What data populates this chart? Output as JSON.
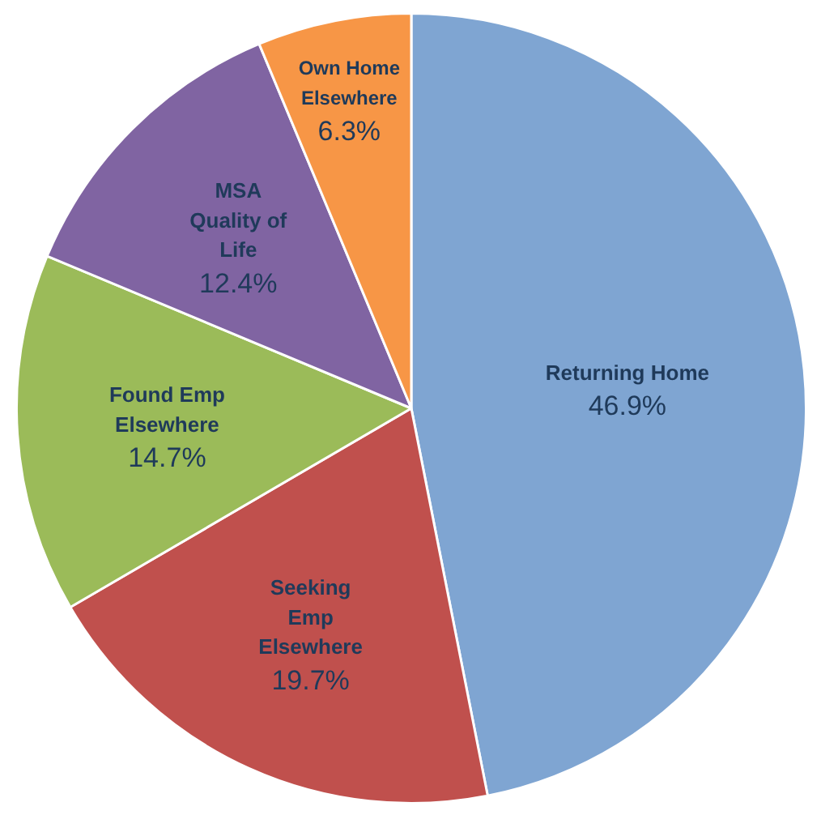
{
  "chart_data": {
    "type": "pie",
    "categories": [
      "Returning Home",
      "Seeking\nEmp\nElsewhere",
      "Found Emp\nElsewhere",
      "MSA\nQuality of\nLife",
      "Own Home\nElsewhere"
    ],
    "values": [
      46.9,
      19.7,
      14.7,
      12.4,
      6.3
    ],
    "value_labels": [
      "46.9%",
      "19.7%",
      "14.7%",
      "12.4%",
      "6.3%"
    ],
    "colors": [
      "#7fa5d2",
      "#c0504d",
      "#9bbb59",
      "#8064a2",
      "#f79646"
    ],
    "legend": false
  }
}
